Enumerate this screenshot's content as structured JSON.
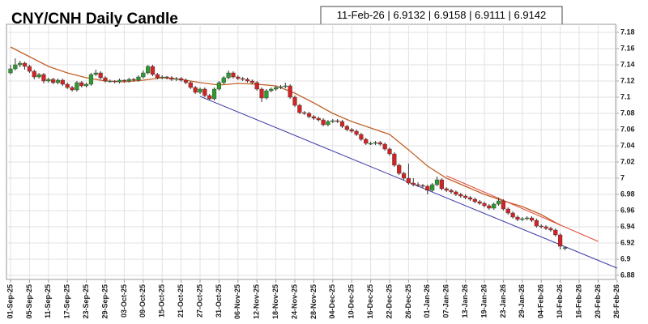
{
  "chart_data": {
    "type": "candlestick",
    "title": "CNY/CNH Daily Candle",
    "info_box": "11-Feb-26 | 6.9132 | 6.9158 | 6.9111 | 6.9142",
    "categories": [
      "01-Sep-25",
      null,
      null,
      null,
      "05-Sep-25",
      null,
      null,
      null,
      "11-Sep-25",
      null,
      null,
      null,
      "17-Sep-25",
      null,
      null,
      null,
      "23-Sep-25",
      null,
      null,
      null,
      "29-Sep-25",
      null,
      null,
      null,
      "03-Oct-25",
      null,
      null,
      null,
      "09-Oct-25",
      null,
      null,
      null,
      "15-Oct-25",
      null,
      null,
      null,
      "21-Oct-25",
      null,
      null,
      null,
      "27-Oct-25",
      null,
      null,
      null,
      "31-Oct-25",
      null,
      null,
      null,
      "06-Nov-25",
      null,
      null,
      null,
      "12-Nov-25",
      null,
      null,
      null,
      "18-Nov-25",
      null,
      null,
      null,
      "24-Nov-25",
      null,
      null,
      null,
      "28-Nov-25",
      null,
      null,
      null,
      "04-Dec-25",
      null,
      null,
      null,
      "10-Dec-25",
      null,
      null,
      null,
      "16-Dec-25",
      null,
      null,
      null,
      "22-Dec-25",
      null,
      null,
      null,
      "26-Dec-25",
      null,
      null,
      null,
      "01-Jan-26",
      null,
      null,
      null,
      "07-Jan-26",
      null,
      null,
      null,
      "13-Jan-26",
      null,
      null,
      null,
      "19-Jan-26",
      null,
      null,
      null,
      "23-Jan-26",
      null,
      null,
      null,
      "29-Jan-26",
      null,
      null,
      null,
      "04-Feb-26",
      null,
      null,
      null,
      "10-Feb-26",
      null,
      null,
      null,
      "16-Feb-26",
      null,
      null,
      null,
      "20-Feb-26",
      null,
      null,
      null,
      "26-Feb-26"
    ],
    "ohlc": [
      [
        7.13,
        7.14,
        7.128,
        7.135
      ],
      [
        7.135,
        7.148,
        7.133,
        7.14
      ],
      [
        7.14,
        7.145,
        7.137,
        7.142
      ],
      [
        7.142,
        7.144,
        7.134,
        7.138
      ],
      [
        7.138,
        7.14,
        7.13,
        7.132
      ],
      [
        7.132,
        7.134,
        7.122,
        7.125
      ],
      [
        7.125,
        7.13,
        7.123,
        7.128
      ],
      [
        7.128,
        7.13,
        7.117,
        7.12
      ],
      [
        7.12,
        7.124,
        7.118,
        7.122
      ],
      [
        7.122,
        7.124,
        7.116,
        7.118
      ],
      [
        7.118,
        7.123,
        7.116,
        7.121
      ],
      [
        7.121,
        7.123,
        7.114,
        7.116
      ],
      [
        7.116,
        7.118,
        7.11,
        7.112
      ],
      [
        7.112,
        7.114,
        7.107,
        7.109
      ],
      [
        7.109,
        7.12,
        7.107,
        7.118
      ],
      [
        7.118,
        7.12,
        7.112,
        7.114
      ],
      [
        7.114,
        7.118,
        7.112,
        7.116
      ],
      [
        7.116,
        7.13,
        7.114,
        7.128
      ],
      [
        7.128,
        7.134,
        7.126,
        7.13
      ],
      [
        7.13,
        7.132,
        7.122,
        7.124
      ],
      [
        7.124,
        7.126,
        7.118,
        7.12
      ],
      [
        7.12,
        7.122,
        7.118,
        7.12
      ],
      [
        7.12,
        7.121,
        7.117,
        7.119
      ],
      [
        7.119,
        7.123,
        7.117,
        7.121
      ],
      [
        7.121,
        7.122,
        7.118,
        7.12
      ],
      [
        7.12,
        7.124,
        7.118,
        7.122
      ],
      [
        7.122,
        7.124,
        7.119,
        7.121
      ],
      [
        7.121,
        7.127,
        7.119,
        7.125
      ],
      [
        7.125,
        7.133,
        7.123,
        7.13
      ],
      [
        7.13,
        7.14,
        7.128,
        7.138
      ],
      [
        7.138,
        7.14,
        7.126,
        7.128
      ],
      [
        7.128,
        7.13,
        7.122,
        7.124
      ],
      [
        7.124,
        7.127,
        7.122,
        7.125
      ],
      [
        7.125,
        7.126,
        7.122,
        7.124
      ],
      [
        7.124,
        7.126,
        7.12,
        7.122
      ],
      [
        7.122,
        7.125,
        7.12,
        7.123
      ],
      [
        7.123,
        7.125,
        7.119,
        7.121
      ],
      [
        7.121,
        7.123,
        7.116,
        7.118
      ],
      [
        7.118,
        7.12,
        7.11,
        7.112
      ],
      [
        7.112,
        7.114,
        7.104,
        7.106
      ],
      [
        7.106,
        7.112,
        7.104,
        7.11
      ],
      [
        7.11,
        7.112,
        7.1,
        7.102
      ],
      [
        7.102,
        7.104,
        7.096,
        7.098
      ],
      [
        7.098,
        7.112,
        7.096,
        7.11
      ],
      [
        7.11,
        7.12,
        7.108,
        7.118
      ],
      [
        7.118,
        7.126,
        7.116,
        7.124
      ],
      [
        7.124,
        7.133,
        7.122,
        7.13
      ],
      [
        7.13,
        7.132,
        7.123,
        7.125
      ],
      [
        7.125,
        7.127,
        7.121,
        7.123
      ],
      [
        7.123,
        7.125,
        7.12,
        7.122
      ],
      [
        7.122,
        7.124,
        7.118,
        7.12
      ],
      [
        7.12,
        7.122,
        7.116,
        7.118
      ],
      [
        7.118,
        7.12,
        7.108,
        7.11
      ],
      [
        7.11,
        7.112,
        7.094,
        7.099
      ],
      [
        7.099,
        7.11,
        7.097,
        7.108
      ],
      [
        7.108,
        7.112,
        7.106,
        7.11
      ],
      [
        7.11,
        7.114,
        7.108,
        7.112
      ],
      [
        7.112,
        7.115,
        7.11,
        7.113
      ],
      [
        7.113,
        7.118,
        7.111,
        7.114
      ],
      [
        7.114,
        7.116,
        7.098,
        7.1
      ],
      [
        7.1,
        7.102,
        7.088,
        7.09
      ],
      [
        7.09,
        7.092,
        7.079,
        7.081
      ],
      [
        7.081,
        7.083,
        7.078,
        7.08
      ],
      [
        7.08,
        7.082,
        7.074,
        7.076
      ],
      [
        7.076,
        7.078,
        7.072,
        7.074
      ],
      [
        7.074,
        7.076,
        7.07,
        7.072
      ],
      [
        7.072,
        7.074,
        7.064,
        7.066
      ],
      [
        7.066,
        7.072,
        7.064,
        7.07
      ],
      [
        7.07,
        7.073,
        7.068,
        7.071
      ],
      [
        7.071,
        7.073,
        7.068,
        7.07
      ],
      [
        7.07,
        7.072,
        7.062,
        7.064
      ],
      [
        7.064,
        7.066,
        7.058,
        7.06
      ],
      [
        7.06,
        7.062,
        7.056,
        7.058
      ],
      [
        7.058,
        7.06,
        7.052,
        7.054
      ],
      [
        7.054,
        7.056,
        7.046,
        7.048
      ],
      [
        7.048,
        7.05,
        7.041,
        7.043
      ],
      [
        7.043,
        7.045,
        7.041,
        7.043
      ],
      [
        7.043,
        7.046,
        7.041,
        7.044
      ],
      [
        7.044,
        7.046,
        7.04,
        7.042
      ],
      [
        7.042,
        7.044,
        7.034,
        7.036
      ],
      [
        7.036,
        7.038,
        7.028,
        7.03
      ],
      [
        7.03,
        7.032,
        7.014,
        7.016
      ],
      [
        7.016,
        7.018,
        7.004,
        7.006
      ],
      [
        7.006,
        7.008,
        6.998,
        7.0
      ],
      [
        7.0,
        7.018,
        6.992,
        6.994
      ],
      [
        6.994,
        7.0,
        6.99,
        6.992
      ],
      [
        6.992,
        6.995,
        6.989,
        6.991
      ],
      [
        6.991,
        6.993,
        6.988,
        6.99
      ],
      [
        6.99,
        6.992,
        6.98,
        6.985
      ],
      [
        6.985,
        6.994,
        6.983,
        6.992
      ],
      [
        6.992,
        7.002,
        6.99,
        6.998
      ],
      [
        6.998,
        7.0,
        6.985,
        6.987
      ],
      [
        6.987,
        6.989,
        6.983,
        6.985
      ],
      [
        6.985,
        6.987,
        6.981,
        6.983
      ],
      [
        6.983,
        6.985,
        6.978,
        6.98
      ],
      [
        6.98,
        6.982,
        6.976,
        6.978
      ],
      [
        6.978,
        6.98,
        6.974,
        6.976
      ],
      [
        6.976,
        6.978,
        6.972,
        6.974
      ],
      [
        6.974,
        6.976,
        6.969,
        6.971
      ],
      [
        6.971,
        6.973,
        6.967,
        6.969
      ],
      [
        6.969,
        6.971,
        6.964,
        6.966
      ],
      [
        6.966,
        6.968,
        6.961,
        6.963
      ],
      [
        6.963,
        6.97,
        6.961,
        6.968
      ],
      [
        6.968,
        6.976,
        6.966,
        6.972
      ],
      [
        6.972,
        6.974,
        6.96,
        6.962
      ],
      [
        6.962,
        6.964,
        6.955,
        6.957
      ],
      [
        6.957,
        6.959,
        6.95,
        6.952
      ],
      [
        6.952,
        6.954,
        6.947,
        6.949
      ],
      [
        6.949,
        6.952,
        6.947,
        6.95
      ],
      [
        6.95,
        6.953,
        6.948,
        6.951
      ],
      [
        6.951,
        6.953,
        6.946,
        6.948
      ],
      [
        6.948,
        6.95,
        6.939,
        6.941
      ],
      [
        6.941,
        6.943,
        6.938,
        6.94
      ],
      [
        6.94,
        6.942,
        6.936,
        6.938
      ],
      [
        6.938,
        6.94,
        6.934,
        6.936
      ],
      [
        6.936,
        6.938,
        6.928,
        6.93
      ],
      [
        6.93,
        6.932,
        6.912,
        6.916
      ],
      [
        6.9132,
        6.9158,
        6.9111,
        6.9142
      ],
      null,
      null,
      null,
      null,
      null,
      null,
      null,
      null,
      null,
      null,
      null
    ],
    "up_color": "#2e9a2e",
    "down_color": "#d22424",
    "ma": {
      "color": "#c0622a",
      "x": [
        "01-Sep-25",
        "05-Sep-25",
        "11-Sep-25",
        "17-Sep-25",
        "23-Sep-25",
        "29-Sep-25",
        "03-Oct-25",
        "09-Oct-25",
        "15-Oct-25",
        "21-Oct-25",
        "27-Oct-25",
        "31-Oct-25",
        "06-Nov-25",
        "12-Nov-25",
        "18-Nov-25",
        "24-Nov-25",
        "28-Nov-25",
        "04-Dec-25",
        "10-Dec-25",
        "16-Dec-25",
        "22-Dec-25",
        "26-Dec-25",
        "01-Jan-26",
        "07-Jan-26",
        "13-Jan-26",
        "19-Jan-26",
        "23-Jan-26",
        "29-Jan-26",
        "04-Feb-26",
        "10-Feb-26"
      ],
      "values": [
        7.162,
        7.15,
        7.138,
        7.13,
        7.124,
        7.12,
        7.119,
        7.121,
        7.124,
        7.122,
        7.118,
        7.115,
        7.117,
        7.116,
        7.114,
        7.105,
        7.093,
        7.08,
        7.07,
        7.062,
        7.054,
        7.035,
        7.015,
        7.0,
        6.99,
        6.98,
        6.972,
        6.965,
        6.955,
        6.942
      ]
    },
    "trendlines": [
      {
        "color": "#3a3aa8",
        "x": [
          "27-Oct-25",
          "26-Feb-26"
        ],
        "values": [
          7.101,
          6.889
        ]
      },
      {
        "color": "#e04a3a",
        "x": [
          "07-Jan-26",
          "20-Feb-26"
        ],
        "values": [
          7.003,
          6.922
        ]
      }
    ],
    "ylim": [
      6.875,
      7.19
    ],
    "yticks": [
      6.88,
      6.9,
      6.92,
      6.94,
      6.96,
      6.98,
      7,
      7.02,
      7.04,
      7.06,
      7.08,
      7.1,
      7.12,
      7.14,
      7.16,
      7.18
    ],
    "grid": true
  }
}
